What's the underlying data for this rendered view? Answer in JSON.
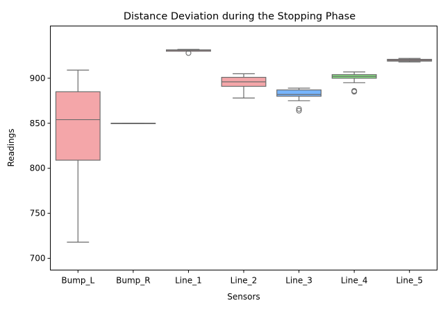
{
  "chart_data": {
    "type": "box",
    "title": "Distance Deviation during the Stopping Phase",
    "xlabel": "Sensors",
    "ylabel": "Readings",
    "ylim": [
      687,
      958
    ],
    "yticks": [
      700,
      750,
      800,
      850,
      900
    ],
    "grid": false,
    "legend": "none",
    "categories": [
      "Bump_L",
      "Bump_R",
      "Line_1",
      "Line_2",
      "Line_3",
      "Line_4",
      "Line_5"
    ],
    "boxes": [
      {
        "category": "Bump_L",
        "whisker_low": 718,
        "q1": 809,
        "median": 854,
        "q3": 885,
        "whisker_high": 909,
        "outliers": [],
        "color": "#f4a6a9"
      },
      {
        "category": "Bump_R",
        "whisker_low": 850,
        "q1": 850,
        "median": 850,
        "q3": 850,
        "whisker_high": 850,
        "outliers": [],
        "color": "#f4a6a9"
      },
      {
        "category": "Line_1",
        "whisker_low": 930,
        "q1": 930,
        "median": 931,
        "q3": 931.5,
        "whisker_high": 932,
        "outliers": [
          928
        ],
        "color": "#f4a6a9"
      },
      {
        "category": "Line_2",
        "whisker_low": 878,
        "q1": 891,
        "median": 896,
        "q3": 901,
        "whisker_high": 905,
        "outliers": [],
        "color": "#f4a6a9"
      },
      {
        "category": "Line_3",
        "whisker_low": 875,
        "q1": 880,
        "median": 882,
        "q3": 887,
        "whisker_high": 889,
        "outliers": [
          866,
          864
        ],
        "color": "#77b5fe"
      },
      {
        "category": "Line_4",
        "whisker_low": 895,
        "q1": 900,
        "median": 902,
        "q3": 904,
        "whisker_high": 907,
        "outliers": [
          886,
          885
        ],
        "color": "#88e683"
      },
      {
        "category": "Line_5",
        "whisker_low": 918,
        "q1": 919,
        "median": 920,
        "q3": 921,
        "whisker_high": 922,
        "outliers": [],
        "color": "#f4a6a9"
      }
    ]
  }
}
